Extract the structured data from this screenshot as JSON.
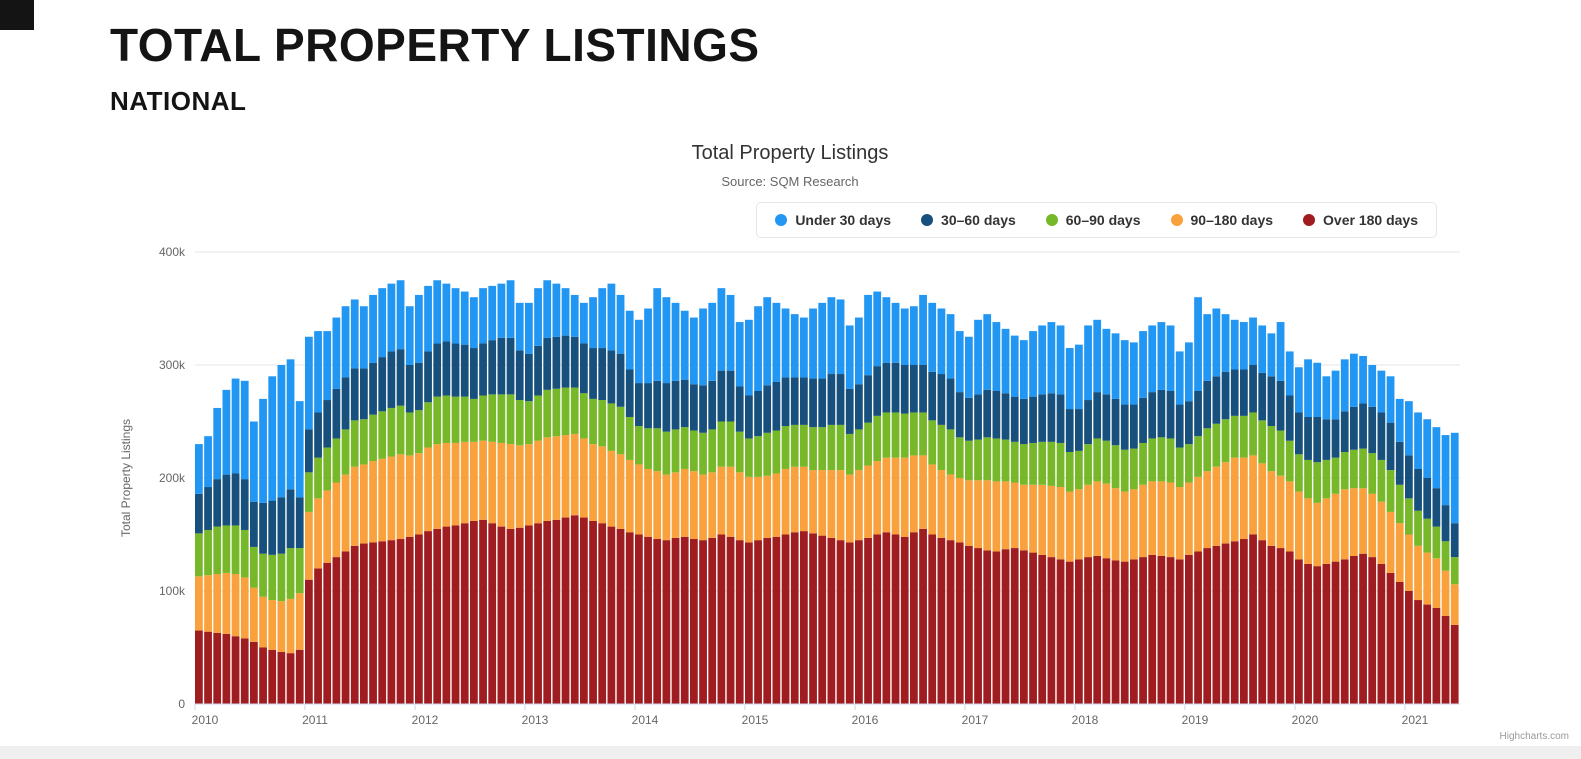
{
  "page": {
    "title": "TOTAL PROPERTY LISTINGS",
    "region_label": "NATIONAL"
  },
  "chart": {
    "title": "Total Property Listings",
    "subtitle": "Source: SQM Research",
    "credits": "Highcharts.com"
  },
  "chart_data": {
    "type": "bar",
    "stacked": true,
    "orientation": "vertical",
    "title": "Total Property Listings",
    "subtitle": "Source: SQM Research",
    "xlabel": "",
    "ylabel": "Total Property Listings",
    "unit": "thousands of listings",
    "ylim": [
      0,
      400
    ],
    "ytick_values": [
      0,
      100,
      200,
      300,
      400
    ],
    "ytick_labels": [
      "0",
      "100k",
      "200k",
      "300k",
      "400k"
    ],
    "grid": true,
    "legend_position": "top",
    "x_interval": "monthly",
    "x_start": "2010-01",
    "x_end": "2021-06",
    "n_bars": 138,
    "x_tick_labels": [
      "2010",
      "2011",
      "2012",
      "2013",
      "2014",
      "2015",
      "2016",
      "2017",
      "2018",
      "2019",
      "2020",
      "2021"
    ],
    "stack_order_bottom_to_top": [
      "Over 180 days",
      "90–180 days",
      "60–90 days",
      "30–60 days",
      "Under 30 days"
    ],
    "series": [
      {
        "name": "Under 30 days",
        "color": "#2196f3",
        "values": [
          44,
          45,
          63,
          75,
          84,
          87,
          71,
          92,
          110,
          117,
          115,
          85,
          82,
          72,
          61,
          63,
          63,
          61,
          55,
          60,
          61,
          60,
          61,
          52,
          60,
          58,
          56,
          51,
          49,
          47,
          45,
          49,
          48,
          48,
          51,
          42,
          45,
          51,
          51,
          47,
          42,
          37,
          36,
          45,
          53,
          59,
          52,
          52,
          56,
          66,
          82,
          76,
          69,
          61,
          59,
          68,
          69,
          73,
          67,
          57,
          67,
          75,
          78,
          70,
          61,
          56,
          53,
          62,
          67,
          68,
          66,
          56,
          59,
          71,
          66,
          58,
          53,
          50,
          52,
          62,
          61,
          58,
          57,
          54,
          54,
          66,
          67,
          61,
          57,
          54,
          52,
          58,
          61,
          63,
          61,
          54,
          57,
          66,
          64,
          58,
          58,
          57,
          55,
          59,
          59,
          60,
          58,
          47,
          52,
          83,
          59,
          60,
          51,
          44,
          42,
          42,
          42,
          38,
          52,
          39,
          40,
          51,
          48,
          38,
          43,
          46,
          47,
          42,
          37,
          37,
          41,
          38,
          48,
          50,
          52,
          54,
          62,
          80
        ]
      },
      {
        "name": "30–60 days",
        "color": "#17507c",
        "values": [
          35,
          38,
          42,
          45,
          46,
          45,
          40,
          45,
          48,
          50,
          52,
          45,
          38,
          40,
          42,
          44,
          46,
          46,
          45,
          46,
          48,
          50,
          50,
          42,
          42,
          45,
          47,
          48,
          47,
          46,
          45,
          46,
          48,
          50,
          50,
          44,
          42,
          44,
          46,
          46,
          46,
          45,
          44,
          45,
          46,
          47,
          47,
          42,
          38,
          40,
          42,
          43,
          43,
          42,
          41,
          42,
          43,
          45,
          45,
          40,
          38,
          40,
          42,
          43,
          43,
          42,
          42,
          43,
          43,
          45,
          45,
          40,
          40,
          42,
          44,
          44,
          44,
          43,
          42,
          42,
          43,
          45,
          45,
          40,
          38,
          40,
          42,
          42,
          41,
          40,
          40,
          41,
          42,
          43,
          43,
          38,
          37,
          39,
          41,
          41,
          41,
          40,
          39,
          40,
          41,
          42,
          42,
          38,
          38,
          40,
          42,
          42,
          42,
          41,
          41,
          42,
          42,
          44,
          44,
          40,
          37,
          38,
          40,
          36,
          34,
          36,
          38,
          40,
          41,
          42,
          42,
          38,
          38,
          37,
          36,
          34,
          32,
          30
        ]
      },
      {
        "name": "60–90 days",
        "color": "#76b82a",
        "values": [
          38,
          40,
          42,
          42,
          43,
          42,
          36,
          38,
          40,
          42,
          45,
          40,
          35,
          36,
          38,
          39,
          40,
          41,
          40,
          41,
          42,
          43,
          43,
          38,
          38,
          40,
          42,
          42,
          41,
          40,
          38,
          40,
          42,
          43,
          44,
          40,
          38,
          40,
          42,
          42,
          42,
          41,
          40,
          40,
          41,
          42,
          42,
          38,
          34,
          36,
          38,
          38,
          38,
          37,
          36,
          37,
          38,
          40,
          40,
          36,
          34,
          36,
          38,
          38,
          38,
          37,
          37,
          38,
          38,
          40,
          40,
          36,
          36,
          38,
          40,
          40,
          40,
          39,
          38,
          38,
          39,
          40,
          40,
          36,
          35,
          36,
          38,
          38,
          37,
          36,
          36,
          37,
          38,
          39,
          39,
          35,
          34,
          36,
          38,
          38,
          38,
          37,
          36,
          37,
          38,
          39,
          39,
          35,
          34,
          36,
          38,
          38,
          38,
          37,
          37,
          38,
          38,
          40,
          40,
          36,
          33,
          34,
          36,
          34,
          32,
          33,
          34,
          35,
          36,
          37,
          37,
          34,
          32,
          31,
          30,
          28,
          26,
          24
        ]
      },
      {
        "name": "90–180 days",
        "color": "#f9a13c",
        "values": [
          48,
          50,
          52,
          54,
          55,
          54,
          48,
          45,
          44,
          45,
          48,
          50,
          60,
          62,
          64,
          66,
          68,
          70,
          70,
          72,
          73,
          74,
          75,
          72,
          72,
          74,
          75,
          74,
          73,
          72,
          70,
          70,
          72,
          74,
          75,
          73,
          72,
          73,
          74,
          74,
          73,
          72,
          70,
          68,
          68,
          67,
          66,
          64,
          62,
          60,
          60,
          58,
          58,
          60,
          60,
          58,
          58,
          60,
          62,
          60,
          58,
          56,
          55,
          56,
          58,
          58,
          57,
          56,
          58,
          60,
          62,
          60,
          62,
          64,
          65,
          66,
          68,
          70,
          68,
          65,
          62,
          60,
          58,
          57,
          58,
          60,
          62,
          62,
          60,
          58,
          58,
          60,
          62,
          63,
          64,
          62,
          62,
          64,
          66,
          66,
          64,
          62,
          62,
          64,
          65,
          66,
          66,
          64,
          64,
          66,
          68,
          70,
          72,
          74,
          72,
          70,
          68,
          66,
          64,
          62,
          60,
          58,
          56,
          58,
          60,
          62,
          60,
          58,
          56,
          55,
          54,
          52,
          50,
          48,
          46,
          44,
          40,
          36
        ]
      },
      {
        "name": "Over 180 days",
        "color": "#9f1d20",
        "values": [
          65,
          64,
          63,
          62,
          60,
          58,
          55,
          50,
          48,
          46,
          45,
          48,
          110,
          120,
          125,
          130,
          135,
          140,
          142,
          143,
          144,
          145,
          146,
          148,
          150,
          153,
          155,
          157,
          158,
          160,
          162,
          163,
          160,
          157,
          155,
          156,
          158,
          160,
          162,
          163,
          165,
          167,
          165,
          162,
          160,
          157,
          155,
          152,
          150,
          148,
          146,
          145,
          147,
          148,
          146,
          145,
          147,
          150,
          148,
          145,
          143,
          145,
          147,
          148,
          150,
          152,
          153,
          151,
          149,
          147,
          145,
          143,
          145,
          147,
          150,
          152,
          150,
          148,
          152,
          155,
          150,
          147,
          145,
          143,
          140,
          138,
          136,
          135,
          137,
          138,
          136,
          134,
          132,
          130,
          128,
          126,
          128,
          130,
          131,
          129,
          127,
          126,
          128,
          130,
          132,
          131,
          130,
          128,
          132,
          135,
          138,
          140,
          142,
          144,
          146,
          150,
          145,
          140,
          138,
          135,
          128,
          124,
          122,
          124,
          126,
          128,
          131,
          133,
          130,
          124,
          116,
          108,
          100,
          92,
          88,
          85,
          78,
          70
        ]
      }
    ]
  }
}
